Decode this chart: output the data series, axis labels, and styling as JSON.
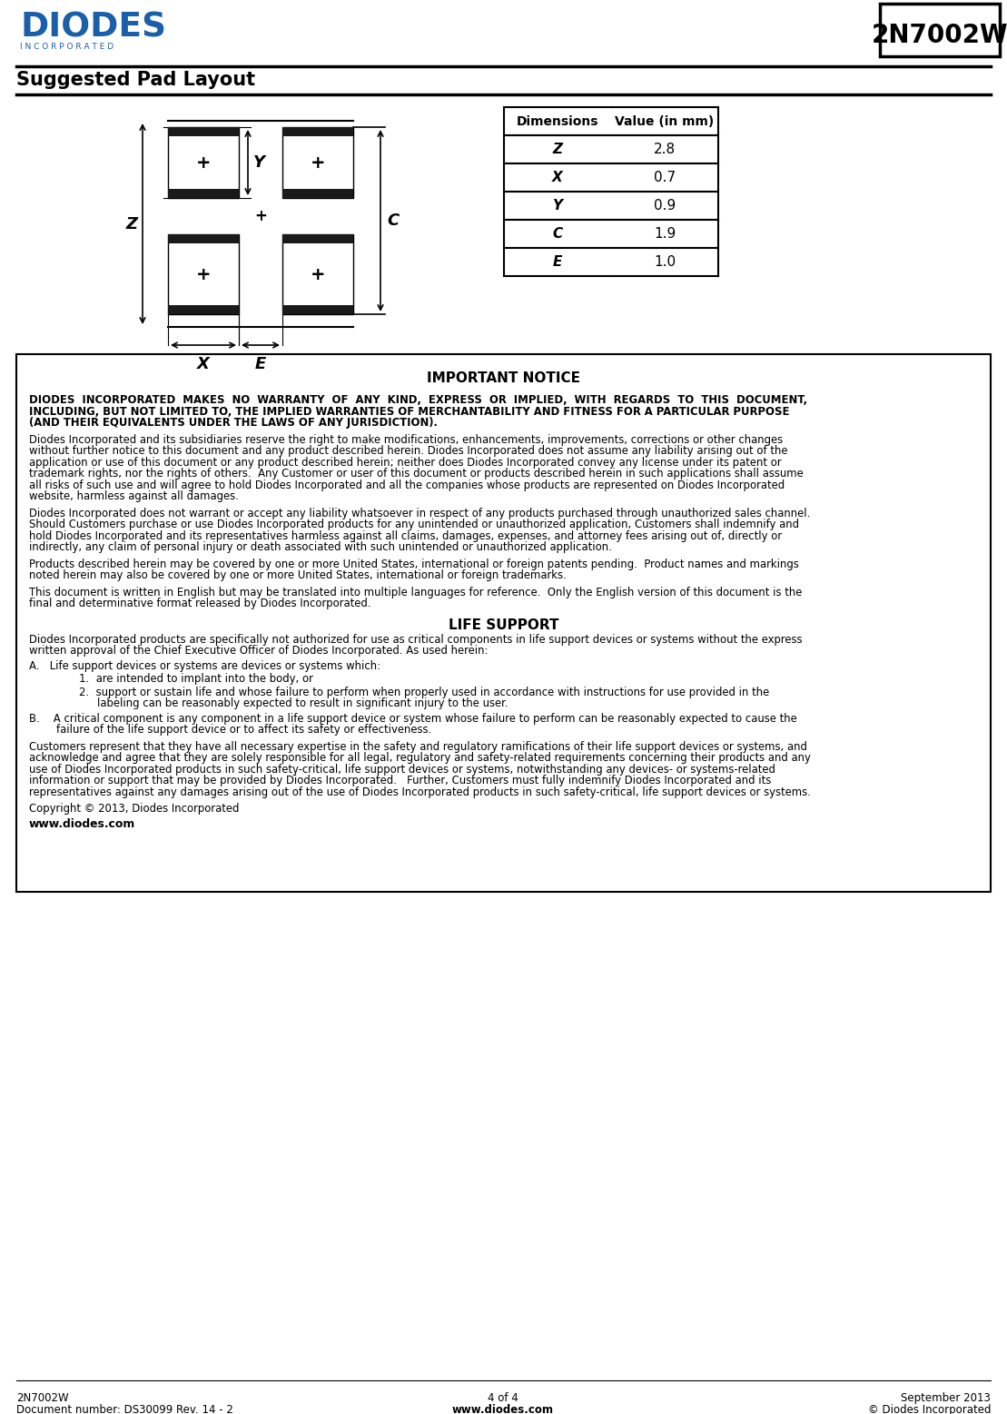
{
  "title_part": "2N7002W",
  "section_title": "Suggested Pad Layout",
  "table_headers": [
    "Dimensions",
    "Value (in mm)"
  ],
  "table_rows": [
    [
      "Z",
      "2.8"
    ],
    [
      "X",
      "0.7"
    ],
    [
      "Y",
      "0.9"
    ],
    [
      "C",
      "1.9"
    ],
    [
      "E",
      "1.0"
    ]
  ],
  "important_notice_title": "IMPORTANT NOTICE",
  "life_support_title": "LIFE SUPPORT",
  "copyright": "Copyright © 2013, Diodes Incorporated",
  "website": "www.diodes.com",
  "footer_left1": "2N7002W",
  "footer_left2": "Document number: DS30099 Rev. 14 - 2",
  "footer_center1": "4 of 4",
  "footer_center2": "www.diodes.com",
  "footer_right1": "September 2013",
  "footer_right2": "© Diodes Incorporated",
  "bg_color": "#ffffff",
  "text_color": "#000000",
  "blue_color": "#1B5FAA",
  "p1_lines": [
    "DIODES  INCORPORATED  MAKES  NO  WARRANTY  OF  ANY  KIND,  EXPRESS  OR  IMPLIED,  WITH  REGARDS  TO  THIS  DOCUMENT,",
    "INCLUDING, BUT NOT LIMITED TO, THE IMPLIED WARRANTIES OF MERCHANTABILITY AND FITNESS FOR A PARTICULAR PURPOSE",
    "(AND THEIR EQUIVALENTS UNDER THE LAWS OF ANY JURISDICTION)."
  ],
  "p2_lines": [
    "Diodes Incorporated and its subsidiaries reserve the right to make modifications, enhancements, improvements, corrections or other changes",
    "without further notice to this document and any product described herein. Diodes Incorporated does not assume any liability arising out of the",
    "application or use of this document or any product described herein; neither does Diodes Incorporated convey any license under its patent or",
    "trademark rights, nor the rights of others.  Any Customer or user of this document or products described herein in such applications shall assume",
    "all risks of such use and will agree to hold Diodes Incorporated and all the companies whose products are represented on Diodes Incorporated",
    "website, harmless against all damages."
  ],
  "p3_lines": [
    "Diodes Incorporated does not warrant or accept any liability whatsoever in respect of any products purchased through unauthorized sales channel.",
    "Should Customers purchase or use Diodes Incorporated products for any unintended or unauthorized application, Customers shall indemnify and",
    "hold Diodes Incorporated and its representatives harmless against all claims, damages, expenses, and attorney fees arising out of, directly or",
    "indirectly, any claim of personal injury or death associated with such unintended or unauthorized application."
  ],
  "p4_lines": [
    "Products described herein may be covered by one or more United States, international or foreign patents pending.  Product names and markings",
    "noted herein may also be covered by one or more United States, international or foreign trademarks."
  ],
  "p5_lines": [
    "This document is written in English but may be translated into multiple languages for reference.  Only the English version of this document is the",
    "final and determinative format released by Diodes Incorporated."
  ],
  "ls_p1_lines": [
    "Diodes Incorporated products are specifically not authorized for use as critical components in life support devices or systems without the express",
    "written approval of the Chief Executive Officer of Diodes Incorporated. As used herein:"
  ],
  "ls_a_intro": "A.   Life support devices or systems are devices or systems which:",
  "ls_a1": "1.  are intended to implant into the body, or",
  "ls_a2_line1": "2.  support or sustain life and whose failure to perform when properly used in accordance with instructions for use provided in the",
  "ls_a2_line2": "labeling can be reasonably expected to result in significant injury to the user.",
  "ls_b_line1": "B.    A critical component is any component in a life support device or system whose failure to perform can be reasonably expected to cause the",
  "ls_b_line2": "failure of the life support device or to affect its safety or effectiveness.",
  "ls_p2_lines": [
    "Customers represent that they have all necessary expertise in the safety and regulatory ramifications of their life support devices or systems, and",
    "acknowledge and agree that they are solely responsible for all legal, regulatory and safety-related requirements concerning their products and any",
    "use of Diodes Incorporated products in such safety-critical, life support devices or systems, notwithstanding any devices- or systems-related",
    "information or support that may be provided by Diodes Incorporated.   Further, Customers must fully indemnify Diodes Incorporated and its",
    "representatives against any damages arising out of the use of Diodes Incorporated products in such safety-critical, life support devices or systems."
  ]
}
